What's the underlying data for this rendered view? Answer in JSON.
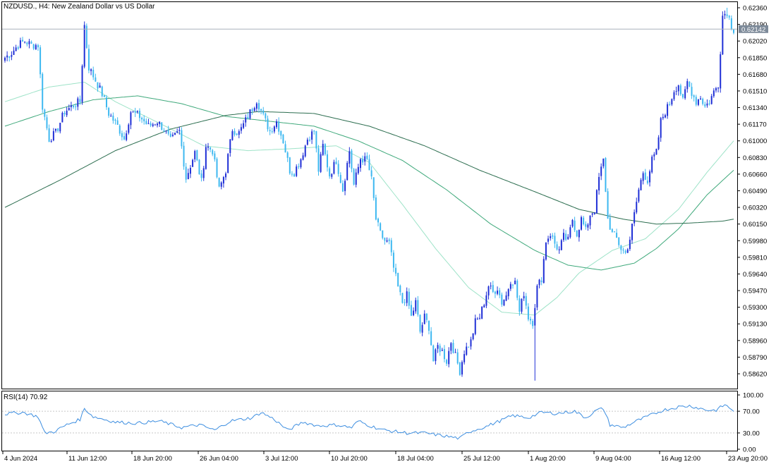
{
  "window": {
    "title": "NZDUSD., H4:  New Zealand Dollar vs US Dollar"
  },
  "colors": {
    "bull": "#1f2fd6",
    "bear": "#3db8f0",
    "sma_fast": "#9ee3c8",
    "sma_mid": "#3fa97b",
    "sma_slow": "#2d6e50",
    "rsi_line": "#3d8ee0",
    "price_tag_bg": "#7d8a99",
    "grid_level": "#c8c8c8",
    "frame": "#000000"
  },
  "price_axis": {
    "ticks": [
      "0.62360",
      "0.62190",
      "0.62020",
      "0.61850",
      "0.61680",
      "0.61510",
      "0.61340",
      "0.61170",
      "0.61000",
      "0.60830",
      "0.60660",
      "0.60490",
      "0.60320",
      "0.60150",
      "0.59980",
      "0.59810",
      "0.59640",
      "0.59470",
      "0.59300",
      "0.59130",
      "0.58960",
      "0.58790",
      "0.58620"
    ],
    "current_price": "0.62142"
  },
  "rsi": {
    "label": "RSI(14) 70.92",
    "ticks": [
      "100.00",
      "70.00",
      "30.00",
      "0.00"
    ],
    "levels": [
      70,
      30
    ]
  },
  "time_axis": {
    "ticks": [
      "4 Jun 2024",
      "11 Jun 12:00",
      "18 Jun 20:00",
      "26 Jun 04:00",
      "3 Jul 12:00",
      "10 Jul 20:00",
      "18 Jul 04:00",
      "25 Jul 12:00",
      "1 Aug 20:00",
      "9 Aug 04:00",
      "16 Aug 12:00",
      "23 Aug 20:00"
    ]
  },
  "chart_data": {
    "type": "candlestick",
    "symbol": "NZDUSD.",
    "timeframe": "H4",
    "ylim": [
      0.5853,
      0.6245
    ],
    "rsi_ylim": [
      0,
      100
    ],
    "price_anchors": [
      [
        0,
        0.6185
      ],
      [
        3,
        0.619
      ],
      [
        6,
        0.6198
      ],
      [
        9,
        0.6202
      ],
      [
        12,
        0.6198
      ],
      [
        15,
        0.6198
      ],
      [
        17,
        0.6135
      ],
      [
        20,
        0.6102
      ],
      [
        23,
        0.6108
      ],
      [
        27,
        0.613
      ],
      [
        32,
        0.6138
      ],
      [
        34,
        0.614
      ],
      [
        36,
        0.6218
      ],
      [
        38,
        0.6175
      ],
      [
        41,
        0.6162
      ],
      [
        44,
        0.6148
      ],
      [
        47,
        0.6128
      ],
      [
        51,
        0.6115
      ],
      [
        54,
        0.6102
      ],
      [
        57,
        0.613
      ],
      [
        61,
        0.6125
      ],
      [
        65,
        0.6115
      ],
      [
        69,
        0.612
      ],
      [
        72,
        0.6112
      ],
      [
        75,
        0.61
      ],
      [
        79,
        0.611
      ],
      [
        82,
        0.6062
      ],
      [
        86,
        0.6088
      ],
      [
        89,
        0.6058
      ],
      [
        91,
        0.6095
      ],
      [
        94,
        0.609
      ],
      [
        97,
        0.605
      ],
      [
        100,
        0.607
      ],
      [
        103,
        0.6112
      ],
      [
        106,
        0.6108
      ],
      [
        110,
        0.6125
      ],
      [
        114,
        0.6142
      ],
      [
        117,
        0.6125
      ],
      [
        120,
        0.611
      ],
      [
        123,
        0.612
      ],
      [
        126,
        0.61
      ],
      [
        129,
        0.607
      ],
      [
        131,
        0.6068
      ],
      [
        134,
        0.6082
      ],
      [
        137,
        0.6102
      ],
      [
        140,
        0.611
      ],
      [
        142,
        0.607
      ],
      [
        144,
        0.6095
      ],
      [
        147,
        0.6065
      ],
      [
        150,
        0.608
      ],
      [
        153,
        0.605
      ],
      [
        156,
        0.609
      ],
      [
        158,
        0.6055
      ],
      [
        161,
        0.6082
      ],
      [
        164,
        0.608
      ],
      [
        166,
        0.606
      ],
      [
        168,
        0.602
      ],
      [
        170,
        0.6005
      ],
      [
        172,
        0.5998
      ],
      [
        174,
        0.5995
      ],
      [
        176,
        0.597
      ],
      [
        178,
        0.595
      ],
      [
        180,
        0.5935
      ],
      [
        182,
        0.5942
      ],
      [
        184,
        0.592
      ],
      [
        186,
        0.5935
      ],
      [
        188,
        0.5905
      ],
      [
        190,
        0.592
      ],
      [
        192,
        0.591
      ],
      [
        194,
        0.5875
      ],
      [
        196,
        0.589
      ],
      [
        198,
        0.5885
      ],
      [
        200,
        0.5875
      ],
      [
        202,
        0.5895
      ],
      [
        204,
        0.588
      ],
      [
        206,
        0.5865
      ],
      [
        208,
        0.5885
      ],
      [
        211,
        0.5895
      ],
      [
        213,
        0.5915
      ],
      [
        215,
        0.592
      ],
      [
        217,
        0.5935
      ],
      [
        219,
        0.5952
      ],
      [
        221,
        0.5945
      ],
      [
        223,
        0.595
      ],
      [
        225,
        0.5935
      ],
      [
        227,
        0.5942
      ],
      [
        229,
        0.5958
      ],
      [
        231,
        0.5955
      ],
      [
        233,
        0.5925
      ],
      [
        235,
        0.5945
      ],
      [
        237,
        0.592
      ],
      [
        239,
        0.5915
      ],
      [
        241,
        0.595
      ],
      [
        243,
        0.596
      ],
      [
        245,
        0.5998
      ],
      [
        247,
        0.6005
      ],
      [
        249,
        0.5995
      ],
      [
        251,
        0.5988
      ],
      [
        253,
        0.6002
      ],
      [
        255,
        0.5998
      ],
      [
        257,
        0.602
      ],
      [
        259,
        0.6005
      ],
      [
        261,
        0.602
      ],
      [
        263,
        0.6008
      ],
      [
        265,
        0.6025
      ],
      [
        267,
        0.603
      ],
      [
        269,
        0.6062
      ],
      [
        271,
        0.608
      ],
      [
        273,
        0.602
      ],
      [
        275,
        0.6005
      ],
      [
        277,
        0.6
      ],
      [
        279,
        0.599
      ],
      [
        281,
        0.5985
      ],
      [
        283,
        0.6
      ],
      [
        285,
        0.6025
      ],
      [
        287,
        0.605
      ],
      [
        289,
        0.6068
      ],
      [
        291,
        0.606
      ],
      [
        293,
        0.608
      ],
      [
        295,
        0.6088
      ],
      [
        297,
        0.612
      ],
      [
        299,
        0.613
      ],
      [
        301,
        0.6138
      ],
      [
        303,
        0.6152
      ],
      [
        305,
        0.6158
      ],
      [
        307,
        0.614
      ],
      [
        309,
        0.616
      ],
      [
        311,
        0.615
      ],
      [
        313,
        0.614
      ],
      [
        315,
        0.6145
      ],
      [
        317,
        0.6135
      ],
      [
        319,
        0.614
      ],
      [
        321,
        0.615
      ],
      [
        323,
        0.6158
      ],
      [
        325,
        0.6228
      ],
      [
        327,
        0.6232
      ],
      [
        329,
        0.6218
      ],
      [
        330,
        0.6214
      ]
    ],
    "wick_extremes": [
      {
        "bar": 36,
        "type": "high",
        "price": 0.6222
      },
      {
        "bar": 206,
        "type": "low",
        "price": 0.586
      },
      {
        "bar": 240,
        "type": "low",
        "price": 0.5855
      },
      {
        "bar": 327,
        "type": "high",
        "price": 0.6236
      }
    ],
    "sma_fast": [
      [
        0,
        0.614
      ],
      [
        20,
        0.6155
      ],
      [
        36,
        0.616
      ],
      [
        50,
        0.614
      ],
      [
        70,
        0.6118
      ],
      [
        90,
        0.6095
      ],
      [
        110,
        0.609
      ],
      [
        130,
        0.6092
      ],
      [
        150,
        0.6095
      ],
      [
        165,
        0.6078
      ],
      [
        180,
        0.6035
      ],
      [
        195,
        0.599
      ],
      [
        210,
        0.595
      ],
      [
        225,
        0.5925
      ],
      [
        240,
        0.5922
      ],
      [
        250,
        0.594
      ],
      [
        260,
        0.5965
      ],
      [
        275,
        0.5988
      ],
      [
        290,
        0.6
      ],
      [
        305,
        0.603
      ],
      [
        318,
        0.6068
      ],
      [
        330,
        0.61
      ]
    ],
    "sma_mid": [
      [
        0,
        0.6115
      ],
      [
        20,
        0.613
      ],
      [
        40,
        0.6142
      ],
      [
        60,
        0.6146
      ],
      [
        80,
        0.6138
      ],
      [
        100,
        0.6125
      ],
      [
        120,
        0.612
      ],
      [
        140,
        0.6115
      ],
      [
        160,
        0.61
      ],
      [
        180,
        0.608
      ],
      [
        200,
        0.605
      ],
      [
        220,
        0.6015
      ],
      [
        240,
        0.5988
      ],
      [
        255,
        0.5973
      ],
      [
        270,
        0.5968
      ],
      [
        285,
        0.5975
      ],
      [
        295,
        0.599
      ],
      [
        305,
        0.601
      ],
      [
        318,
        0.6045
      ],
      [
        330,
        0.607
      ]
    ],
    "sma_slow": [
      [
        0,
        0.6032
      ],
      [
        25,
        0.606
      ],
      [
        50,
        0.609
      ],
      [
        75,
        0.6112
      ],
      [
        100,
        0.6126
      ],
      [
        115,
        0.613
      ],
      [
        140,
        0.6128
      ],
      [
        165,
        0.6115
      ],
      [
        190,
        0.6095
      ],
      [
        215,
        0.607
      ],
      [
        240,
        0.6048
      ],
      [
        260,
        0.603
      ],
      [
        280,
        0.602
      ],
      [
        295,
        0.6015
      ],
      [
        310,
        0.6016
      ],
      [
        325,
        0.6018
      ],
      [
        330,
        0.602
      ]
    ],
    "rsi_anchors": [
      [
        0,
        65
      ],
      [
        8,
        68
      ],
      [
        15,
        60
      ],
      [
        18,
        30
      ],
      [
        22,
        32
      ],
      [
        28,
        45
      ],
      [
        34,
        55
      ],
      [
        36,
        75
      ],
      [
        40,
        60
      ],
      [
        50,
        50
      ],
      [
        60,
        48
      ],
      [
        70,
        52
      ],
      [
        80,
        40
      ],
      [
        88,
        45
      ],
      [
        95,
        35
      ],
      [
        102,
        52
      ],
      [
        112,
        58
      ],
      [
        116,
        68
      ],
      [
        122,
        55
      ],
      [
        128,
        35
      ],
      [
        135,
        50
      ],
      [
        142,
        43
      ],
      [
        150,
        45
      ],
      [
        157,
        40
      ],
      [
        160,
        52
      ],
      [
        166,
        42
      ],
      [
        172,
        35
      ],
      [
        182,
        30
      ],
      [
        190,
        30
      ],
      [
        198,
        25
      ],
      [
        206,
        20
      ],
      [
        210,
        32
      ],
      [
        218,
        42
      ],
      [
        224,
        52
      ],
      [
        230,
        62
      ],
      [
        237,
        58
      ],
      [
        243,
        68
      ],
      [
        250,
        66
      ],
      [
        258,
        70
      ],
      [
        263,
        58
      ],
      [
        268,
        72
      ],
      [
        271,
        75
      ],
      [
        274,
        45
      ],
      [
        280,
        40
      ],
      [
        286,
        52
      ],
      [
        292,
        62
      ],
      [
        298,
        72
      ],
      [
        305,
        78
      ],
      [
        310,
        80
      ],
      [
        318,
        72
      ],
      [
        322,
        72
      ],
      [
        326,
        82
      ],
      [
        330,
        71
      ]
    ]
  }
}
